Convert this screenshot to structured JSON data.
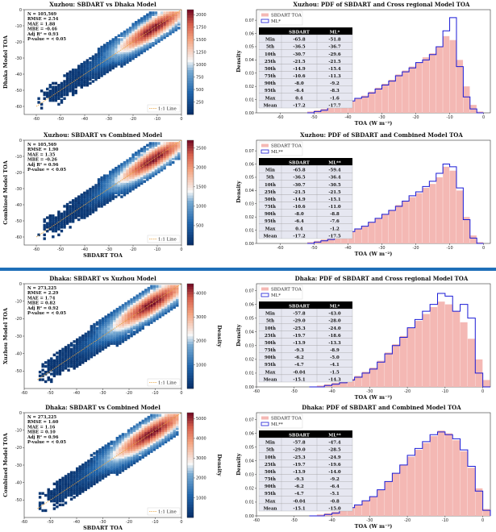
{
  "colors": {
    "kde_pdf_bar": "#f4b8b4",
    "ml_line": "#1a1ad6",
    "one_to_one": "#e9a23b",
    "table_header": "#000000",
    "table_row": "#e6e7f1",
    "divider": "#1f6fb8"
  },
  "panels": [
    {
      "scatter": {
        "title": "Xuzhou: SBDART vs Dhaka Model",
        "xlabel": "",
        "ylabel": "Dhaka Model TOA",
        "stats": [
          "N = 105,569",
          "RMSE = 2.54",
          "MAE = 1.88",
          "MBE = -0.46",
          "Adj R² = 0.93",
          "P-value = < 0.05"
        ],
        "xlim": [
          -65,
          0
        ],
        "ylim": [
          -65,
          0
        ],
        "xticks": [
          "-60",
          "-50",
          "-40",
          "-30",
          "-20",
          "-10",
          "0"
        ],
        "yticks": [
          "-60",
          "-50",
          "-40",
          "-30",
          "-20",
          "-10",
          "0"
        ],
        "cbar_label": "",
        "cbar_max": 2100,
        "cbar_ticks": [
          "250",
          "500",
          "750",
          "1000",
          "1250",
          "1500",
          "1750",
          "2000"
        ],
        "legend": "1:1 Line"
      },
      "pdf": {
        "title": "Xuzhou: PDF of SBDART and Cross regional Model TOA",
        "xlabel": "TOA (W m⁻²)",
        "ylabel": "Density",
        "legend": [
          "SBDART TOA",
          "ML*"
        ],
        "yticks": [
          "0.00",
          "0.01",
          "0.02",
          "0.03",
          "0.04",
          "0.05",
          "0.06",
          "0.07"
        ],
        "ymax": 0.078,
        "xticks": [
          "-60",
          "-50",
          "-40",
          "-30",
          "-20",
          "-10",
          "0"
        ],
        "xlim": [
          -67,
          2
        ],
        "table": {
          "headers": [
            "",
            "SBDART",
            "ML*"
          ],
          "rows": [
            [
              "Min",
              "-65.8",
              "-51.8"
            ],
            [
              "5th",
              "-36.5",
              "-36.7"
            ],
            [
              "10th",
              "-30.7",
              "-29.6"
            ],
            [
              "25th",
              "-21.5",
              "-21.5"
            ],
            [
              "50th",
              "-14.9",
              "-15.4"
            ],
            [
              "75th",
              "-10.6",
              "-11.3"
            ],
            [
              "90th",
              "-8.0",
              "-9.2"
            ],
            [
              "95th",
              "-6.4",
              "-8.3"
            ],
            [
              "Max",
              "0.4",
              "-1.6"
            ],
            [
              "Mean",
              "-17.2",
              "-17.7"
            ]
          ]
        }
      }
    },
    {
      "scatter": {
        "title": "Xuzhou: SBDART vs Combined Model",
        "xlabel": "SBDART TOA",
        "ylabel": "Combined Model TOA",
        "stats": [
          "N = 105,569",
          "RMSE = 1.90",
          "MAE = 1.35",
          "MBE = -0.26",
          "Adj R² = 0.96",
          "P-value = < 0.05"
        ],
        "xlim": [
          -65,
          0
        ],
        "ylim": [
          -65,
          0
        ],
        "xticks": [
          "-60",
          "-50",
          "-40",
          "-30",
          "-20",
          "-10",
          "0"
        ],
        "yticks": [
          "-60",
          "-50",
          "-40",
          "-30",
          "-20",
          "-10",
          "0"
        ],
        "cbar_label": "",
        "cbar_max": 2700,
        "cbar_ticks": [
          "500",
          "1000",
          "1500",
          "2000",
          "2500"
        ],
        "legend": "1:1 Line"
      },
      "pdf": {
        "title": "Xuzhou: PDF of SBDART and Combined Model TOA",
        "xlabel": "TOA (W m⁻²)",
        "ylabel": "Density",
        "legend": [
          "SBDART TOA",
          "ML**"
        ],
        "yticks": [
          "0.00",
          "0.01",
          "0.02",
          "0.03",
          "0.04",
          "0.05",
          "0.06",
          "0.07"
        ],
        "ymax": 0.078,
        "xticks": [
          "-60",
          "-50",
          "-40",
          "-30",
          "-20",
          "-10",
          "0"
        ],
        "xlim": [
          -67,
          2
        ],
        "table": {
          "headers": [
            "",
            "SBDART",
            "ML**"
          ],
          "rows": [
            [
              "Min",
              "-65.8",
              "-59.4"
            ],
            [
              "5th",
              "-36.5",
              "-36.4"
            ],
            [
              "10th",
              "-30.7",
              "-30.5"
            ],
            [
              "25th",
              "-21.5",
              "-21.5"
            ],
            [
              "50th",
              "-14.9",
              "-15.1"
            ],
            [
              "75th",
              "-10.6",
              "-11.0"
            ],
            [
              "90th",
              "-8.0",
              "-8.8"
            ],
            [
              "95th",
              "-6.4",
              "-7.6"
            ],
            [
              "Max",
              "0.4",
              "-1.2"
            ],
            [
              "Mean",
              "-17.2",
              "-17.5"
            ]
          ]
        }
      }
    },
    {
      "scatter": {
        "title": "Dhaka: SBDART vs Xuzhou Model",
        "xlabel": "",
        "ylabel": "Xuzhou Model TOA",
        "stats": [
          "N = 273,225",
          "RMSE = 2.29",
          "MAE = 1.74",
          "MBE = 0.82",
          "Adj R² = 0.92",
          "P-value = < 0.05"
        ],
        "xlim": [
          -60,
          0
        ],
        "ylim": [
          -60,
          0
        ],
        "xticks": [
          "-60",
          "-50",
          "-40",
          "-30",
          "-20",
          "-10",
          "0"
        ],
        "yticks": [
          "-50",
          "-40",
          "-30",
          "-20",
          "-10",
          "0"
        ],
        "cbar_label": "Density",
        "cbar_max": 4400,
        "cbar_ticks": [
          "1000",
          "2000",
          "3000",
          "4000"
        ],
        "legend": "1:1 Line"
      },
      "pdf": {
        "title": "Dhaka: PDF of SBDART and Cross regional Model TOA",
        "xlabel": "TOA (W m⁻²)",
        "ylabel": "Density",
        "legend": [
          "SBDART TOA",
          "ML*"
        ],
        "yticks": [
          "0.00",
          "0.01",
          "0.02",
          "0.03",
          "0.04",
          "0.05",
          "0.06",
          "0.07"
        ],
        "ymax": 0.075,
        "xticks": [
          "-60",
          "-50",
          "-40",
          "-30",
          "-20",
          "-10",
          "0"
        ],
        "xlim": [
          -60,
          2
        ],
        "table": {
          "headers": [
            "",
            "SBDART",
            "ML*"
          ],
          "rows": [
            [
              "Min",
              "-57.8",
              "-43.0"
            ],
            [
              "5th",
              "-29.0",
              "-28.0"
            ],
            [
              "10th",
              "-25.3",
              "-24.0"
            ],
            [
              "25th",
              "-19.7",
              "-18.6"
            ],
            [
              "50th",
              "-13.9",
              "-13.3"
            ],
            [
              "75th",
              "-9.3",
              "-8.9"
            ],
            [
              "90th",
              "-6.2",
              "-5.0"
            ],
            [
              "95th",
              "-4.7",
              "-4.1"
            ],
            [
              "Max",
              "-0.04",
              "-1.5"
            ],
            [
              "Mean",
              "-15.1",
              "-14.3"
            ]
          ]
        }
      }
    },
    {
      "scatter": {
        "title": "Dhaka: SBDART vs Combined Model",
        "xlabel": "SBDART TOA",
        "ylabel": "Combined Model TOA",
        "stats": [
          "N = 273,225",
          "RMSE = 1.60",
          "MAE = 1.16",
          "MBE = 0.10",
          "Adj R² = 0.96",
          "P-value = < 0.05"
        ],
        "xlim": [
          -60,
          0
        ],
        "ylim": [
          -60,
          0
        ],
        "xticks": [
          "-60",
          "-50",
          "-40",
          "-30",
          "-20",
          "-10",
          "0"
        ],
        "yticks": [
          "-50",
          "-40",
          "-30",
          "-20",
          "-10",
          "0"
        ],
        "cbar_label": "Density",
        "cbar_max": 5300,
        "cbar_ticks": [
          "1000",
          "2000",
          "3000",
          "4000",
          "5000"
        ],
        "legend": "1:1 Line"
      },
      "pdf": {
        "title": "Dhaka: PDF of SBDART and Combined Model TOA",
        "xlabel": "TOA (W m⁻²)",
        "ylabel": "Density",
        "legend": [
          "SBDART TOA",
          "ML**"
        ],
        "yticks": [
          "0.00",
          "0.01",
          "0.02",
          "0.03",
          "0.04",
          "0.05",
          "0.06",
          "0.07"
        ],
        "ymax": 0.075,
        "xticks": [
          "-60",
          "-50",
          "-40",
          "-30",
          "-20",
          "-10",
          "0"
        ],
        "xlim": [
          -60,
          2
        ],
        "table": {
          "headers": [
            "",
            "SBDART",
            "ML**"
          ],
          "rows": [
            [
              "Min",
              "-57.8",
              "-47.4"
            ],
            [
              "5th",
              "-29.0",
              "-28.5"
            ],
            [
              "10th",
              "-25.3",
              "-24.9"
            ],
            [
              "25th",
              "-19.7",
              "-19.6"
            ],
            [
              "50th",
              "-13.9",
              "-14.0"
            ],
            [
              "75th",
              "-9.3",
              "-9.2"
            ],
            [
              "90th",
              "-6.2",
              "-6.4"
            ],
            [
              "95th",
              "-4.7",
              "-5.1"
            ],
            [
              "Max",
              "-0.04",
              "-0.8"
            ],
            [
              "Mean",
              "-15.1",
              "-15.0"
            ]
          ]
        }
      }
    }
  ],
  "chart_data": [
    {
      "type": "heatmap",
      "ref": "xuzhou-dhaka-model-scatter",
      "x_center": -12,
      "y_center": -11,
      "xlim": [
        -65,
        0
      ],
      "ylim": [
        -65,
        0
      ]
    },
    {
      "type": "bar",
      "ref": "xuzhou-cross-regional-pdf",
      "bins_x": [
        -52,
        -50,
        -48,
        -46,
        -44,
        -42,
        -40,
        -38,
        -36,
        -34,
        -32,
        -30,
        -28,
        -26,
        -24,
        -22,
        -20,
        -18,
        -16,
        -14,
        -12,
        -10,
        -8,
        -6,
        -4,
        -2
      ],
      "series": [
        {
          "name": "SBDART TOA",
          "values": [
            0.001,
            0.002,
            0.003,
            0.004,
            0.006,
            0.007,
            0.009,
            0.011,
            0.013,
            0.016,
            0.019,
            0.022,
            0.025,
            0.029,
            0.032,
            0.035,
            0.038,
            0.042,
            0.045,
            0.05,
            0.058,
            0.055,
            0.04,
            0.02,
            0.006,
            0.001
          ]
        },
        {
          "name": "ML*",
          "values": [
            0.0,
            0.001,
            0.002,
            0.004,
            0.005,
            0.007,
            0.009,
            0.011,
            0.012,
            0.015,
            0.018,
            0.021,
            0.024,
            0.028,
            0.031,
            0.034,
            0.038,
            0.04,
            0.044,
            0.05,
            0.062,
            0.072,
            0.035,
            0.012,
            0.003,
            0.0
          ]
        }
      ]
    },
    {
      "type": "heatmap",
      "ref": "xuzhou-combined-scatter",
      "x_center": -12,
      "y_center": -11,
      "xlim": [
        -65,
        0
      ],
      "ylim": [
        -65,
        0
      ]
    },
    {
      "type": "bar",
      "ref": "xuzhou-combined-pdf",
      "bins_x": [
        -52,
        -50,
        -48,
        -46,
        -44,
        -42,
        -40,
        -38,
        -36,
        -34,
        -32,
        -30,
        -28,
        -26,
        -24,
        -22,
        -20,
        -18,
        -16,
        -14,
        -12,
        -10,
        -8,
        -6,
        -4,
        -2
      ],
      "series": [
        {
          "name": "SBDART TOA",
          "values": [
            0.001,
            0.002,
            0.003,
            0.004,
            0.006,
            0.007,
            0.009,
            0.011,
            0.013,
            0.016,
            0.019,
            0.022,
            0.025,
            0.029,
            0.032,
            0.035,
            0.038,
            0.042,
            0.045,
            0.05,
            0.058,
            0.055,
            0.04,
            0.02,
            0.006,
            0.001
          ]
        },
        {
          "name": "ML**",
          "values": [
            0.0,
            0.001,
            0.002,
            0.003,
            0.005,
            0.007,
            0.009,
            0.011,
            0.013,
            0.016,
            0.019,
            0.022,
            0.025,
            0.028,
            0.032,
            0.036,
            0.039,
            0.043,
            0.047,
            0.053,
            0.06,
            0.058,
            0.042,
            0.018,
            0.004,
            0.0
          ]
        }
      ]
    },
    {
      "type": "heatmap",
      "ref": "dhaka-xuzhou-model-scatter",
      "x_center": -12,
      "y_center": -11,
      "xlim": [
        -60,
        0
      ],
      "ylim": [
        -60,
        0
      ]
    },
    {
      "type": "bar",
      "ref": "dhaka-cross-regional-pdf",
      "bins_x": [
        -46,
        -44,
        -42,
        -40,
        -38,
        -36,
        -34,
        -32,
        -30,
        -28,
        -26,
        -24,
        -22,
        -20,
        -18,
        -16,
        -14,
        -12,
        -10,
        -8,
        -6,
        -4,
        -2,
        0
      ],
      "series": [
        {
          "name": "SBDART TOA",
          "values": [
            0.0,
            0.001,
            0.002,
            0.003,
            0.004,
            0.006,
            0.008,
            0.011,
            0.014,
            0.019,
            0.025,
            0.031,
            0.037,
            0.043,
            0.048,
            0.053,
            0.058,
            0.062,
            0.06,
            0.055,
            0.047,
            0.035,
            0.02,
            0.005
          ]
        },
        {
          "name": "ML*",
          "values": [
            0.0,
            0.0,
            0.001,
            0.002,
            0.003,
            0.005,
            0.007,
            0.01,
            0.013,
            0.018,
            0.024,
            0.03,
            0.036,
            0.043,
            0.049,
            0.055,
            0.06,
            0.068,
            0.066,
            0.055,
            0.06,
            0.05,
            0.01,
            0.0
          ]
        }
      ]
    },
    {
      "type": "heatmap",
      "ref": "dhaka-combined-scatter",
      "x_center": -12,
      "y_center": -11,
      "xlim": [
        -60,
        0
      ],
      "ylim": [
        -60,
        0
      ]
    },
    {
      "type": "bar",
      "ref": "dhaka-combined-pdf",
      "bins_x": [
        -46,
        -44,
        -42,
        -40,
        -38,
        -36,
        -34,
        -32,
        -30,
        -28,
        -26,
        -24,
        -22,
        -20,
        -18,
        -16,
        -14,
        -12,
        -10,
        -8,
        -6,
        -4,
        -2,
        0
      ],
      "series": [
        {
          "name": "SBDART TOA",
          "values": [
            0.0,
            0.001,
            0.002,
            0.003,
            0.004,
            0.006,
            0.008,
            0.011,
            0.014,
            0.019,
            0.025,
            0.031,
            0.037,
            0.043,
            0.048,
            0.053,
            0.058,
            0.062,
            0.06,
            0.055,
            0.047,
            0.035,
            0.02,
            0.005
          ]
        },
        {
          "name": "ML**",
          "values": [
            0.0,
            0.0,
            0.001,
            0.002,
            0.004,
            0.006,
            0.008,
            0.011,
            0.014,
            0.019,
            0.025,
            0.031,
            0.037,
            0.044,
            0.049,
            0.054,
            0.059,
            0.061,
            0.059,
            0.056,
            0.048,
            0.036,
            0.018,
            0.004
          ]
        }
      ]
    }
  ]
}
